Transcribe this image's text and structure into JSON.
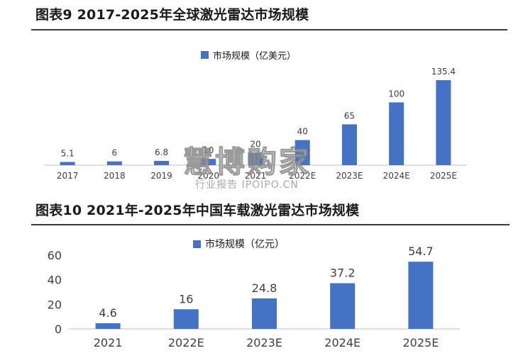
{
  "figure1": {
    "title": "图表9 2017-2025年全球激光雷达市场规模"
  },
  "figure2": {
    "title": "图表10 2021年-2025年中国车载激光雷达市场规模"
  },
  "watermark": {
    "main": "慧博购家",
    "sub": "行业报告 IPOIPO.CN"
  },
  "colors": {
    "bar": "#4472C4",
    "axis": "#bfbfbf",
    "rule": "#3c3c3c"
  },
  "chart_data": [
    {
      "type": "bar",
      "title": "图表9 2017-2025年全球激光雷达市场规模",
      "categories": [
        "2017",
        "2018",
        "2019",
        "2020",
        "2021",
        "2022E",
        "2023E",
        "2024E",
        "2025E"
      ],
      "series": [
        {
          "name": "市场规模（亿美元）",
          "values": [
            5.1,
            6,
            6.8,
            10,
            20,
            40,
            65,
            100,
            135.4
          ]
        }
      ],
      "value_labels": [
        "5.1",
        "6",
        "6.8",
        "10",
        "20",
        "40",
        "65",
        "100",
        "135.4"
      ],
      "ylim": [
        0,
        140
      ],
      "y_axis_visible": false,
      "grid": false,
      "legend_position": "top-center"
    },
    {
      "type": "bar",
      "title": "图表10 2021年-2025年中国车载激光雷达市场规模",
      "categories": [
        "2021",
        "2022E",
        "2023E",
        "2024E",
        "2025E"
      ],
      "series": [
        {
          "name": "市场规模（亿元）",
          "values": [
            4.6,
            16,
            24.8,
            37.2,
            54.7
          ]
        }
      ],
      "value_labels": [
        "4.6",
        "16",
        "24.8",
        "37.2",
        "54.7"
      ],
      "yticks": [
        "0",
        "20",
        "40",
        "60"
      ],
      "ylim": [
        0,
        60
      ],
      "grid": false,
      "legend_position": "top-center"
    }
  ]
}
